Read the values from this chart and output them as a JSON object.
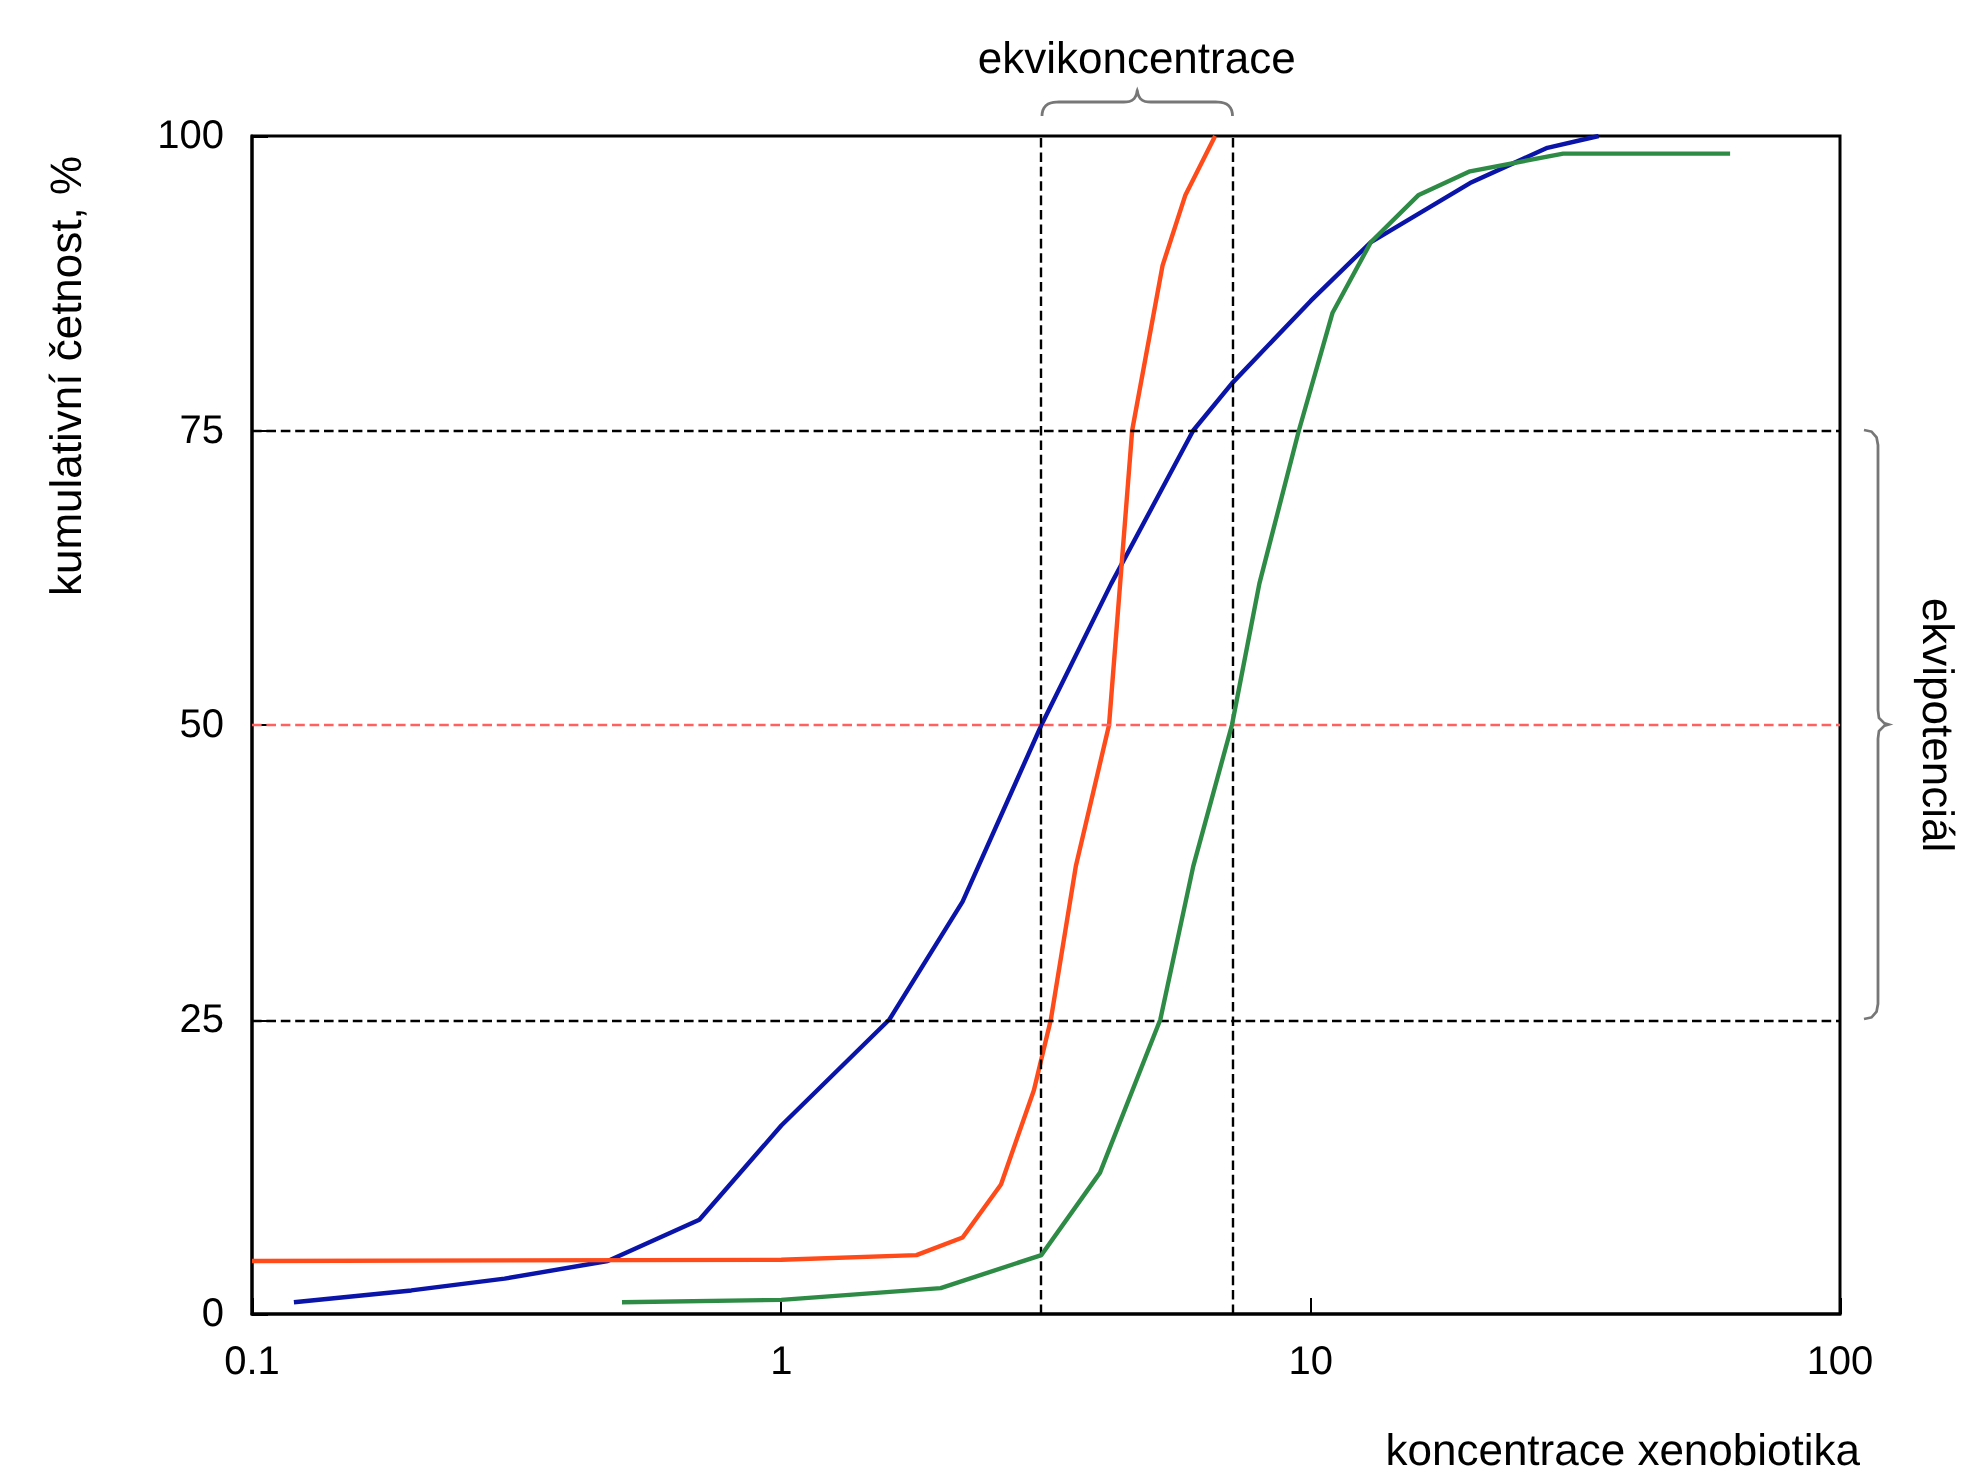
{
  "chart_data": {
    "type": "line",
    "xlabel": "koncentrace xenobiotika",
    "ylabel": "kumulativní četnost, %",
    "log": "x",
    "xlim": [
      0.1,
      100
    ],
    "xticks": [
      0.1,
      1,
      10,
      100
    ],
    "ylim": [
      0,
      100
    ],
    "yticks": [
      0,
      25,
      50,
      75,
      100
    ],
    "grid": false,
    "marker": "none",
    "line_style": "solid",
    "annotations": [
      "ekvikoncentrace",
      "ekvipotenciál"
    ],
    "ref_lines": [
      {
        "axis": "x",
        "value": 3.1,
        "color": "#000000",
        "line_style": "dashed"
      },
      {
        "axis": "x",
        "value": 7.1,
        "color": "#000000",
        "line_style": "dashed"
      },
      {
        "axis": "y",
        "value": 25,
        "color": "#000000",
        "line_style": "dashed"
      },
      {
        "axis": "y",
        "value": 50,
        "color": "#ff6060",
        "line_style": "dashed"
      },
      {
        "axis": "y",
        "value": 75,
        "color": "#000000",
        "line_style": "dashed"
      }
    ],
    "series": [
      {
        "color": "#0a14a8",
        "x": [
          0.12,
          0.2,
          0.3,
          0.47,
          0.7,
          1,
          1.6,
          2.2,
          3.1,
          4.2,
          6,
          7.1,
          10,
          13,
          20,
          28,
          35
        ],
        "values": [
          1,
          2,
          3,
          4.5,
          8,
          16,
          25,
          35,
          50,
          62,
          75,
          79,
          86,
          91,
          96,
          99,
          100
        ]
      },
      {
        "color": "#ff4a1a",
        "x": [
          0.1,
          1,
          1.8,
          2.2,
          2.6,
          3,
          3.23,
          3.6,
          4.16,
          4.6,
          5.25,
          5.8,
          6.6
        ],
        "values": [
          4.5,
          4.6,
          5,
          6.5,
          11,
          19,
          25,
          38,
          50,
          75,
          89,
          95,
          100
        ]
      },
      {
        "color": "#2e8b46",
        "x": [
          0.5,
          1,
          2,
          3.1,
          4,
          5.2,
          6,
          7.1,
          8,
          9.5,
          11,
          13,
          16,
          20,
          30,
          62
        ],
        "values": [
          1,
          1.2,
          2.2,
          5,
          12,
          25,
          38,
          50,
          62,
          75,
          85,
          91,
          95,
          97,
          98.5,
          98.5
        ]
      }
    ]
  }
}
